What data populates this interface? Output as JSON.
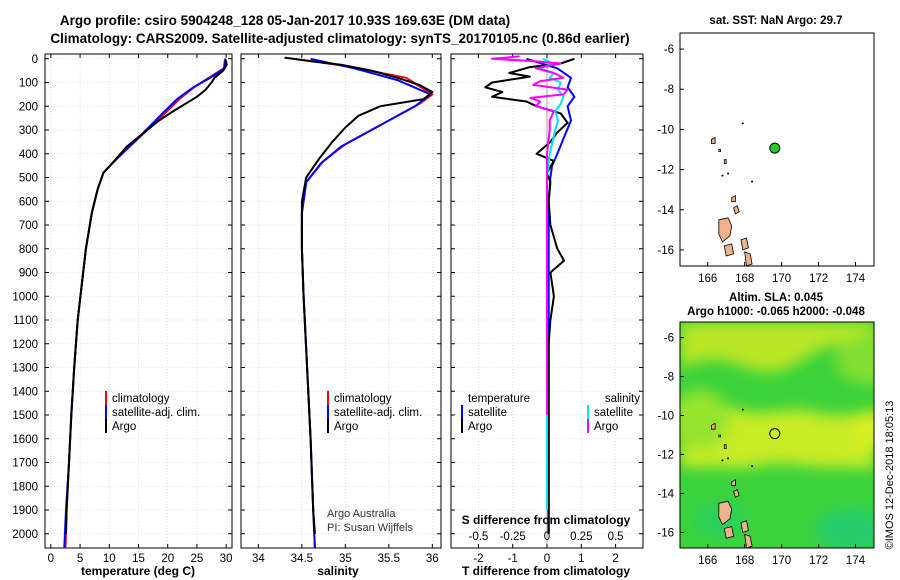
{
  "title": {
    "line1": "Argo profile: csiro 5904248_128 05-Jan-2017 10.93S 169.63E (DM data)",
    "line2": "Climatology: CARS2009. Satellite-adjusted climatology: synTS_20170105.nc (0.86d earlier)"
  },
  "credit": {
    "line1": "Argo Australia",
    "line2": "PI: Susan Wijffels"
  },
  "stamp": "©IMOS 12-Dec-2018 18:05:13",
  "colors": {
    "climatology": "#ff0000",
    "satellite": "#0000ff",
    "argo": "#000000",
    "t_diff": "#000000",
    "s_sat": "#00e5ee",
    "s_argo": "#ff00ff"
  },
  "chart_data": [
    {
      "type": "line",
      "title": "",
      "xlabel": "temperature (deg C)",
      "ylabel": "",
      "xlim": [
        -1,
        31
      ],
      "ylim": [
        2060,
        -20
      ],
      "x_ticks": [
        "0",
        "5",
        "10",
        "15",
        "20",
        "25",
        "30"
      ],
      "y_ticks": [
        "0",
        "100",
        "200",
        "300",
        "400",
        "500",
        "600",
        "700",
        "800",
        "900",
        "1000",
        "1100",
        "1200",
        "1300",
        "1400",
        "1500",
        "1600",
        "1700",
        "1800",
        "1900",
        "2000"
      ],
      "legend": [
        "climatology",
        "satellite-adj. clim.",
        "Argo"
      ],
      "series": [
        {
          "name": "climatology",
          "color": "#ff0000",
          "points": [
            [
              29.8,
              0
            ],
            [
              29.6,
              40
            ],
            [
              27,
              80
            ],
            [
              24.5,
              120
            ],
            [
              22,
              170
            ],
            [
              19.5,
              230
            ],
            [
              16.5,
              300
            ],
            [
              13.5,
              370
            ],
            [
              10.5,
              440
            ],
            [
              9,
              480
            ],
            [
              8,
              550
            ],
            [
              7,
              650
            ],
            [
              6,
              800
            ],
            [
              5.3,
              950
            ],
            [
              4.6,
              1100
            ],
            [
              4,
              1300
            ],
            [
              3.5,
              1500
            ],
            [
              3.1,
              1700
            ],
            [
              2.7,
              1900
            ],
            [
              2.5,
              2060
            ]
          ]
        },
        {
          "name": "satellite-adj. clim.",
          "color": "#0000ff",
          "points": [
            [
              29.9,
              0
            ],
            [
              29.7,
              40
            ],
            [
              27.3,
              80
            ],
            [
              24.4,
              120
            ],
            [
              21.6,
              170
            ],
            [
              19.1,
              230
            ],
            [
              16.3,
              300
            ],
            [
              13.4,
              370
            ],
            [
              10.5,
              440
            ],
            [
              9,
              480
            ],
            [
              8,
              550
            ],
            [
              7,
              650
            ],
            [
              6,
              800
            ],
            [
              5.3,
              950
            ],
            [
              4.6,
              1100
            ],
            [
              4,
              1300
            ],
            [
              3.5,
              1500
            ],
            [
              3.1,
              1700
            ],
            [
              2.6,
              1900
            ],
            [
              2.3,
              2060
            ]
          ]
        },
        {
          "name": "Argo",
          "color": "#000000",
          "points": [
            [
              29.9,
              5
            ],
            [
              30.1,
              25
            ],
            [
              29.5,
              50
            ],
            [
              28,
              80
            ],
            [
              27.5,
              100
            ],
            [
              26.5,
              130
            ],
            [
              25,
              160
            ],
            [
              23,
              190
            ],
            [
              21,
              220
            ],
            [
              18.5,
              260
            ],
            [
              16,
              310
            ],
            [
              13,
              370
            ],
            [
              10.5,
              440
            ],
            [
              9,
              480
            ],
            [
              8,
              550
            ],
            [
              7,
              650
            ],
            [
              6,
              800
            ],
            [
              5.3,
              950
            ],
            [
              4.6,
              1100
            ],
            [
              4,
              1300
            ],
            [
              3.5,
              1500
            ],
            [
              3.1,
              1700
            ],
            [
              2.7,
              1900
            ],
            [
              2.6,
              2000
            ]
          ]
        }
      ]
    },
    {
      "type": "line",
      "xlabel": "salinity",
      "ylabel": "",
      "xlim": [
        33.8,
        36.1
      ],
      "ylim": [
        2060,
        -20
      ],
      "x_ticks": [
        "34",
        "34.5",
        "35",
        "35.5",
        "36"
      ],
      "legend": [
        "climatology",
        "satellite-adj. clim.",
        "Argo"
      ],
      "series": [
        {
          "name": "climatology",
          "color": "#ff0000",
          "points": [
            [
              34.4,
              0
            ],
            [
              35.0,
              30
            ],
            [
              35.7,
              80
            ],
            [
              36.0,
              150
            ],
            [
              35.85,
              190
            ],
            [
              35.6,
              240
            ],
            [
              35.3,
              300
            ],
            [
              35.0,
              360
            ],
            [
              34.75,
              430
            ],
            [
              34.55,
              520
            ],
            [
              34.5,
              650
            ],
            [
              34.5,
              800
            ],
            [
              34.52,
              1000
            ],
            [
              34.56,
              1300
            ],
            [
              34.6,
              1600
            ],
            [
              34.63,
              1900
            ],
            [
              34.65,
              2060
            ]
          ]
        },
        {
          "name": "satellite-adj. clim.",
          "color": "#0000ff",
          "points": [
            [
              34.6,
              0
            ],
            [
              35.1,
              40
            ],
            [
              35.6,
              90
            ],
            [
              35.98,
              150
            ],
            [
              35.8,
              200
            ],
            [
              35.55,
              250
            ],
            [
              35.25,
              310
            ],
            [
              34.95,
              370
            ],
            [
              34.72,
              440
            ],
            [
              34.55,
              520
            ],
            [
              34.5,
              650
            ],
            [
              34.5,
              800
            ],
            [
              34.52,
              1000
            ],
            [
              34.56,
              1300
            ],
            [
              34.6,
              1600
            ],
            [
              34.63,
              1900
            ],
            [
              34.65,
              2060
            ]
          ]
        },
        {
          "name": "Argo",
          "color": "#000000",
          "points": [
            [
              34.3,
              -5
            ],
            [
              34.6,
              10
            ],
            [
              34.95,
              25
            ],
            [
              35.3,
              50
            ],
            [
              35.6,
              80
            ],
            [
              35.85,
              110
            ],
            [
              36.0,
              140
            ],
            [
              35.9,
              170
            ],
            [
              35.4,
              200
            ],
            [
              35.15,
              240
            ],
            [
              35.0,
              290
            ],
            [
              34.85,
              350
            ],
            [
              34.7,
              420
            ],
            [
              34.55,
              500
            ],
            [
              34.5,
              600
            ],
            [
              34.5,
              800
            ],
            [
              34.52,
              1000
            ],
            [
              34.56,
              1300
            ],
            [
              34.6,
              1600
            ],
            [
              34.63,
              1900
            ],
            [
              34.65,
              2000
            ]
          ]
        }
      ]
    },
    {
      "type": "line",
      "xlabel": "T difference from climatology",
      "x2label": "S difference from climatology",
      "ylabel": "",
      "xlim": [
        -2.8,
        2.8
      ],
      "ylim": [
        2060,
        -20
      ],
      "x_ticks": [
        "-2",
        "-1",
        "0",
        "1",
        "2"
      ],
      "x2_ticks": [
        "-0.5",
        "-0.25",
        "0",
        "0.25",
        "0.5"
      ],
      "legend_temperature": [
        "temperature",
        "satellite",
        "Argo"
      ],
      "legend_salinity": [
        "salinity",
        "satellite",
        "Argo"
      ],
      "series": [
        {
          "name": "temperature satellite",
          "color": "#0000ff",
          "points": [
            [
              -0.6,
              0
            ],
            [
              0.3,
              40
            ],
            [
              0.7,
              80
            ],
            [
              0.6,
              120
            ],
            [
              0.8,
              160
            ],
            [
              0.6,
              200
            ],
            [
              0.7,
              260
            ],
            [
              0.5,
              330
            ],
            [
              0.3,
              400
            ],
            [
              0.15,
              450
            ],
            [
              0.1,
              500
            ],
            [
              0.05,
              600
            ],
            [
              0.05,
              800
            ],
            [
              0.05,
              1000
            ],
            [
              0.05,
              1400
            ],
            [
              0.05,
              2000
            ]
          ]
        },
        {
          "name": "temperature Argo",
          "color": "#000000",
          "points": [
            [
              0.8,
              0
            ],
            [
              0.4,
              20
            ],
            [
              -0.5,
              35
            ],
            [
              -1.1,
              60
            ],
            [
              -0.5,
              75
            ],
            [
              -1.6,
              100
            ],
            [
              -1.8,
              120
            ],
            [
              -1.3,
              140
            ],
            [
              -1.6,
              160
            ],
            [
              -0.6,
              180
            ],
            [
              -0.3,
              200
            ],
            [
              0.4,
              230
            ],
            [
              0.6,
              270
            ],
            [
              0.3,
              310
            ],
            [
              0.1,
              350
            ],
            [
              -0.3,
              400
            ],
            [
              0.2,
              430
            ],
            [
              0.0,
              480
            ],
            [
              0.1,
              520
            ],
            [
              0.05,
              600
            ],
            [
              0.1,
              700
            ],
            [
              0.3,
              800
            ],
            [
              0.5,
              850
            ],
            [
              0.1,
              900
            ],
            [
              0.2,
              1000
            ],
            [
              0.1,
              1100
            ],
            [
              0.05,
              1200
            ],
            [
              0.05,
              1400
            ],
            [
              0.05,
              1600
            ],
            [
              0.05,
              1800
            ],
            [
              0.05,
              2000
            ]
          ]
        },
        {
          "name": "salinity satellite",
          "color": "#00e5ee",
          "points": [
            [
              -0.03,
              0
            ],
            [
              0.04,
              20
            ],
            [
              -0.05,
              40
            ],
            [
              0.05,
              60
            ],
            [
              0.02,
              80
            ],
            [
              0.1,
              100
            ],
            [
              0.08,
              130
            ],
            [
              0.12,
              160
            ],
            [
              0.1,
              190
            ],
            [
              0.06,
              220
            ],
            [
              0.08,
              260
            ],
            [
              0.06,
              300
            ],
            [
              0.04,
              350
            ],
            [
              0.02,
              400
            ],
            [
              0.01,
              450
            ],
            [
              0.0,
              500
            ],
            [
              0.0,
              700
            ],
            [
              0.0,
              1000
            ],
            [
              0.0,
              1400
            ],
            [
              0.0,
              1900
            ]
          ]
        },
        {
          "name": "salinity Argo",
          "color": "#ff00ff",
          "points": [
            [
              -0.2,
              -10
            ],
            [
              -0.4,
              0
            ],
            [
              -0.1,
              10
            ],
            [
              0.1,
              20
            ],
            [
              -0.08,
              40
            ],
            [
              0.05,
              60
            ],
            [
              0.12,
              80
            ],
            [
              -0.05,
              95
            ],
            [
              -0.1,
              110
            ],
            [
              0.15,
              130
            ],
            [
              0.12,
              150
            ],
            [
              -0.12,
              165
            ],
            [
              -0.05,
              180
            ],
            [
              -0.08,
              200
            ],
            [
              0.05,
              220
            ],
            [
              0.02,
              260
            ],
            [
              0.02,
              300
            ],
            [
              0.0,
              400
            ],
            [
              0.0,
              600
            ],
            [
              0.0,
              800
            ],
            [
              0.0,
              1000
            ],
            [
              0.0,
              1400
            ],
            [
              0.0,
              1500
            ]
          ]
        }
      ]
    },
    {
      "type": "scatter",
      "title": "sat. SST: NaN Argo: 29.7",
      "xlim": [
        164.5,
        175
      ],
      "ylim": [
        -16.8,
        -5.2
      ],
      "x_ticks": [
        "166",
        "168",
        "170",
        "172",
        "174"
      ],
      "y_ticks": [
        "-6",
        "-8",
        "-10",
        "-12",
        "-14",
        "-16"
      ],
      "points": [
        {
          "label": "Argo",
          "x": 169.63,
          "y": -10.93
        }
      ]
    },
    {
      "type": "heatmap",
      "title": "Altim. SLA: 0.045",
      "subtitle": "Argo h1000: -0.065 h2000: -0.048",
      "xlim": [
        164.5,
        175
      ],
      "ylim": [
        -16.8,
        -5.2
      ],
      "x_ticks": [
        "166",
        "168",
        "170",
        "172",
        "174"
      ],
      "y_ticks": [
        "-6",
        "-8",
        "-10",
        "-12",
        "-14",
        "-16"
      ],
      "points": [
        {
          "label": "Argo",
          "x": 169.63,
          "y": -10.93
        }
      ]
    }
  ]
}
